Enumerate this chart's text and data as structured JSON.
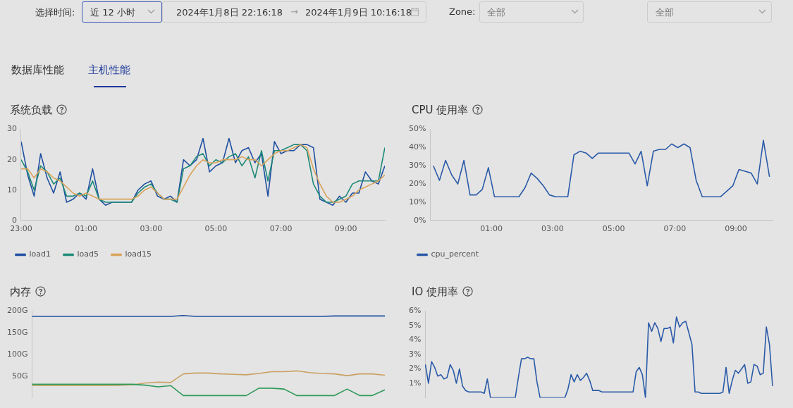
{
  "chart_data": [
    {
      "type": "other",
      "annotations": [
        "选择时间:",
        "近 12 小时",
        "2024年1月8日 22:16:18",
        "→",
        "2024年1月9日 10:16:18",
        "Zone:",
        "全部",
        "全部",
        "数据库性能",
        "主机性能"
      ]
    },
    {
      "type": "line",
      "title": "系统负载",
      "x": [
        "2024-01-08T23:00",
        "2024-01-08T23:12",
        "2024-01-08T23:24",
        "2024-01-08T23:36",
        "2024-01-08T23:48",
        "2024-01-09T00:00",
        "2024-01-09T00:12",
        "2024-01-09T00:24",
        "2024-01-09T00:36",
        "2024-01-09T00:48",
        "2024-01-09T01:00",
        "2024-01-09T01:12",
        "2024-01-09T01:24",
        "2024-01-09T01:36",
        "2024-01-09T01:48",
        "2024-01-09T02:00",
        "2024-01-09T02:12",
        "2024-01-09T02:24",
        "2024-01-09T02:36",
        "2024-01-09T02:48",
        "2024-01-09T03:00",
        "2024-01-09T03:12",
        "2024-01-09T03:24",
        "2024-01-09T03:36",
        "2024-01-09T03:48",
        "2024-01-09T04:00",
        "2024-01-09T04:12",
        "2024-01-09T04:24",
        "2024-01-09T04:36",
        "2024-01-09T04:48",
        "2024-01-09T05:00",
        "2024-01-09T05:12",
        "2024-01-09T05:24",
        "2024-01-09T05:36",
        "2024-01-09T05:48",
        "2024-01-09T06:00",
        "2024-01-09T06:12",
        "2024-01-09T06:24",
        "2024-01-09T06:36",
        "2024-01-09T06:48",
        "2024-01-09T07:00",
        "2024-01-09T07:12",
        "2024-01-09T07:24",
        "2024-01-09T07:36",
        "2024-01-09T07:48",
        "2024-01-09T08:00",
        "2024-01-09T08:12",
        "2024-01-09T08:24",
        "2024-01-09T08:36",
        "2024-01-09T08:48",
        "2024-01-09T09:00",
        "2024-01-09T09:12",
        "2024-01-09T09:24",
        "2024-01-09T09:36",
        "2024-01-09T09:48",
        "2024-01-09T10:00",
        "2024-01-09T10:12"
      ],
      "series": [
        {
          "name": "load1",
          "color": "#1f4fa0",
          "values": [
            26,
            15,
            8,
            22,
            14,
            9,
            16,
            6,
            7,
            9,
            7,
            17,
            7,
            5,
            6,
            6,
            6,
            6,
            10,
            12,
            13,
            8,
            7,
            8,
            6,
            20,
            18,
            20,
            27,
            16,
            18,
            19,
            27,
            19,
            23,
            24,
            19,
            22,
            8,
            26,
            22,
            23,
            23,
            25,
            25,
            24,
            7,
            6,
            5,
            8,
            6,
            9,
            9,
            16,
            13,
            12,
            18
          ]
        },
        {
          "name": "load5",
          "color": "#1f8a78",
          "values": [
            20,
            16,
            10,
            18,
            16,
            12,
            14,
            8,
            8,
            9,
            8,
            13,
            7,
            6,
            6,
            6,
            6,
            6,
            9,
            11,
            12,
            9,
            7,
            7,
            6,
            17,
            18,
            21,
            22,
            18,
            20,
            19,
            21,
            22,
            18,
            21,
            14,
            23,
            13,
            23,
            23,
            24,
            25,
            25,
            23,
            12,
            8,
            6,
            6,
            7,
            8,
            12,
            13,
            13,
            13,
            13,
            24
          ]
        },
        {
          "name": "load15",
          "color": "#d9a35a",
          "values": [
            17,
            17,
            14,
            17,
            16,
            14,
            13,
            11,
            9,
            8,
            9,
            8,
            7,
            7,
            7,
            7,
            7,
            7,
            8,
            10,
            11,
            9,
            7,
            7,
            7,
            11,
            15,
            18,
            20,
            19,
            19,
            20,
            20,
            20,
            21,
            20,
            20,
            18,
            20,
            22,
            23,
            23,
            24,
            25,
            24,
            17,
            12,
            8,
            6,
            6,
            7,
            8,
            10,
            11,
            12,
            13,
            15
          ]
        }
      ],
      "xlim": [
        "2024-01-08T23:00",
        "2024-01-09T10:12"
      ],
      "xticks": [
        {
          "value": "2024-01-08T23:00",
          "label": "23:00"
        },
        {
          "value": "2024-01-09T01:00",
          "label": "01:00"
        },
        {
          "value": "2024-01-09T03:00",
          "label": "03:00"
        },
        {
          "value": "2024-01-09T05:00",
          "label": "05:00"
        },
        {
          "value": "2024-01-09T07:00",
          "label": "07:00"
        },
        {
          "value": "2024-01-09T09:00",
          "label": "09:00"
        }
      ],
      "ylim": [
        0,
        30
      ],
      "yticks": [
        0,
        10,
        20,
        30
      ],
      "legend": "bottom",
      "marker": "none"
    },
    {
      "type": "line",
      "title": "CPU 使用率",
      "x": [
        "2024-01-08T23:06",
        "2024-01-08T23:18",
        "2024-01-08T23:30",
        "2024-01-08T23:42",
        "2024-01-08T23:54",
        "2024-01-09T00:06",
        "2024-01-09T00:18",
        "2024-01-09T00:30",
        "2024-01-09T00:42",
        "2024-01-09T00:54",
        "2024-01-09T01:06",
        "2024-01-09T01:18",
        "2024-01-09T01:30",
        "2024-01-09T01:42",
        "2024-01-09T01:54",
        "2024-01-09T02:06",
        "2024-01-09T02:18",
        "2024-01-09T02:30",
        "2024-01-09T02:42",
        "2024-01-09T02:54",
        "2024-01-09T03:06",
        "2024-01-09T03:18",
        "2024-01-09T03:30",
        "2024-01-09T03:42",
        "2024-01-09T03:54",
        "2024-01-09T04:06",
        "2024-01-09T04:18",
        "2024-01-09T04:30",
        "2024-01-09T04:42",
        "2024-01-09T04:54",
        "2024-01-09T05:06",
        "2024-01-09T05:18",
        "2024-01-09T05:30",
        "2024-01-09T05:42",
        "2024-01-09T05:54",
        "2024-01-09T06:06",
        "2024-01-09T06:18",
        "2024-01-09T06:30",
        "2024-01-09T06:42",
        "2024-01-09T06:54",
        "2024-01-09T07:06",
        "2024-01-09T07:18",
        "2024-01-09T07:30",
        "2024-01-09T07:42",
        "2024-01-09T07:54",
        "2024-01-09T08:06",
        "2024-01-09T08:18",
        "2024-01-09T08:30",
        "2024-01-09T08:42",
        "2024-01-09T08:54",
        "2024-01-09T09:06",
        "2024-01-09T09:18",
        "2024-01-09T09:30",
        "2024-01-09T09:42",
        "2024-01-09T09:54",
        "2024-01-09T10:06"
      ],
      "series": [
        {
          "name": "cpu_percent",
          "color": "#2a5aa8",
          "values": [
            30,
            22,
            33,
            25,
            20,
            33,
            14,
            14,
            17,
            29,
            13,
            13,
            13,
            13,
            13,
            18,
            26,
            23,
            19,
            14,
            13,
            13,
            13,
            36,
            38,
            37,
            34,
            37,
            37,
            37,
            37,
            37,
            37,
            31,
            38,
            19,
            38,
            39,
            39,
            42,
            40,
            42,
            40,
            22,
            13,
            13,
            13,
            13,
            16,
            19,
            28,
            27,
            26,
            20,
            44,
            24
          ]
        }
      ],
      "xlim": [
        "2024-01-08T23:00",
        "2024-01-09T10:12"
      ],
      "xticks": [
        {
          "value": "2024-01-09T01:00",
          "label": "01:00"
        },
        {
          "value": "2024-01-09T03:00",
          "label": "03:00"
        },
        {
          "value": "2024-01-09T05:00",
          "label": "05:00"
        },
        {
          "value": "2024-01-09T07:00",
          "label": "07:00"
        },
        {
          "value": "2024-01-09T09:00",
          "label": "09:00"
        }
      ],
      "ylim": [
        0,
        50
      ],
      "yticks": [
        {
          "value": 0,
          "label": "0%"
        },
        {
          "value": 10,
          "label": "10%"
        },
        {
          "value": 20,
          "label": "20%"
        },
        {
          "value": 30,
          "label": "30%"
        },
        {
          "value": 40,
          "label": "40%"
        },
        {
          "value": 50,
          "label": "50%"
        }
      ],
      "legend": "bottom",
      "marker": "none"
    },
    {
      "type": "line",
      "title": "内存",
      "categories": [
        null,
        null,
        null,
        null,
        null,
        null,
        null,
        null,
        null,
        null,
        null,
        null,
        null,
        null,
        null,
        null,
        null,
        null,
        null,
        null,
        null,
        null,
        null,
        null,
        null,
        null,
        null,
        null,
        null
      ],
      "series": [
        {
          "color": "#1f4fa0",
          "values": [
            188,
            188,
            188,
            188,
            188,
            188,
            188,
            188,
            188,
            188,
            188,
            188,
            190,
            188,
            188,
            188,
            188,
            188,
            188,
            188,
            188,
            188,
            188,
            188,
            189,
            189,
            189,
            189,
            189
          ]
        },
        {
          "color": "#c9a060",
          "values": [
            28,
            28,
            28,
            28,
            28,
            28,
            28,
            29,
            30,
            34,
            36,
            35,
            55,
            57,
            57,
            55,
            54,
            53,
            56,
            60,
            60,
            62,
            58,
            56,
            55,
            51,
            55,
            55,
            52
          ]
        },
        {
          "color": "#2e9a5a",
          "values": [
            31,
            31,
            31,
            31,
            31,
            31,
            31,
            31,
            31,
            29,
            25,
            28,
            5,
            5,
            5,
            5,
            5,
            5,
            22,
            22,
            20,
            5,
            5,
            5,
            5,
            20,
            5,
            5,
            18
          ]
        }
      ],
      "ylim": [
        0,
        200
      ],
      "yticks": [
        {
          "value": 50,
          "label": "50G"
        },
        {
          "value": 100,
          "label": "100G"
        },
        {
          "value": 150,
          "label": "150G"
        },
        {
          "value": 200,
          "label": "200G"
        }
      ],
      "tick_labels": "y",
      "marker": "none"
    },
    {
      "type": "line",
      "title": "IO 使用率",
      "categories": [
        null,
        null,
        null,
        null,
        null,
        null,
        null,
        null,
        null,
        null,
        null,
        null,
        null,
        null,
        null,
        null,
        null,
        null,
        null,
        null,
        null,
        null,
        null,
        null,
        null,
        null,
        null,
        null,
        null,
        null,
        null,
        null,
        null,
        null,
        null,
        null,
        null,
        null,
        null,
        null,
        null,
        null,
        null,
        null,
        null,
        null,
        null,
        null,
        null,
        null,
        null,
        null,
        null,
        null,
        null,
        null,
        null,
        null,
        null,
        null,
        null,
        null,
        null,
        null,
        null,
        null,
        null,
        null,
        null,
        null,
        null,
        null,
        null,
        null,
        null,
        null,
        null,
        null,
        null,
        null,
        null,
        null,
        null,
        null,
        null,
        null,
        null,
        null,
        null,
        null,
        null,
        null,
        null,
        null,
        null,
        null,
        null,
        null,
        null,
        null,
        null,
        null,
        null,
        null,
        null,
        null,
        null,
        null,
        null,
        null,
        null,
        null,
        null
      ],
      "series": [
        {
          "color": "#2a5aa8",
          "values": [
            2.3,
            1.0,
            2.5,
            2.1,
            1.5,
            1.6,
            1.3,
            1.4,
            2.3,
            1.9,
            1.0,
            2.0,
            0.8,
            0.5,
            0.4,
            0.4,
            0.4,
            0.4,
            0.4,
            0.3,
            1.3,
            0,
            0,
            0,
            0,
            0,
            0,
            0,
            0,
            0,
            1.4,
            2.7,
            2.7,
            2.8,
            2.7,
            2.7,
            1.1,
            0,
            0,
            0,
            0,
            0,
            0,
            0,
            0,
            0,
            0.6,
            1.6,
            1.1,
            1.6,
            1.2,
            1.4,
            1.7,
            1.2,
            0.5,
            0.5,
            0.5,
            0.4,
            0.4,
            0.4,
            0.4,
            0.4,
            0.4,
            0.4,
            0.4,
            0.4,
            0.4,
            0.4,
            1.8,
            2.1,
            1.6,
            0,
            5.2,
            4.6,
            5.2,
            4.8,
            3.9,
            4.8,
            4.8,
            4.9,
            3.8,
            5.6,
            4.9,
            5.2,
            5.3,
            4.5,
            3.7,
            0.4,
            0.4,
            0.3,
            0.3,
            0.3,
            0.3,
            0.3,
            0.3,
            0.3,
            0.4,
            2.1,
            0.3,
            1.2,
            1.9,
            1.7,
            2.0,
            2.3,
            1.0,
            1.1,
            2.3,
            2.2,
            1.6,
            1.7,
            4.9,
            3.7,
            0.8
          ]
        }
      ],
      "ylim": [
        0,
        6
      ],
      "yticks": [
        {
          "value": 1,
          "label": "1%"
        },
        {
          "value": 2,
          "label": "2%"
        },
        {
          "value": 3,
          "label": "3%"
        },
        {
          "value": 4,
          "label": "4%"
        },
        {
          "value": 5,
          "label": "5%"
        },
        {
          "value": 6,
          "label": "6%"
        }
      ],
      "tick_labels": "y",
      "marker": "none"
    }
  ]
}
